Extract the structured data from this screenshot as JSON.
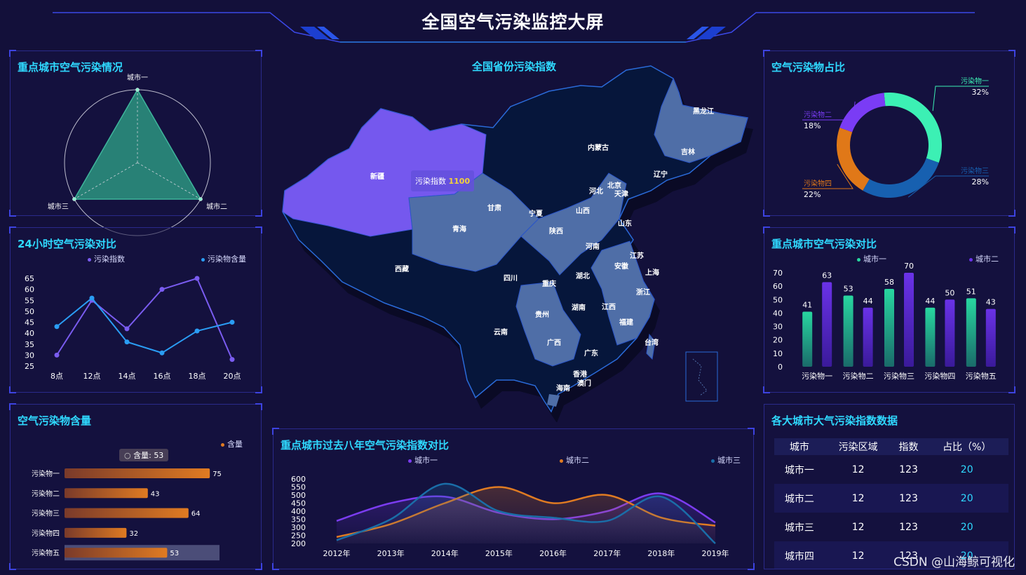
{
  "header": {
    "title": "全国空气污染监控大屏"
  },
  "colors": {
    "cyan": "#2fd9ff",
    "panel_border": "#2a2a8a",
    "bg": "#13103a"
  },
  "panels": {
    "radar": {
      "title": "重点城市空气污染情况"
    },
    "hourly": {
      "title": "24小时空气污染对比"
    },
    "content": {
      "title": "空气污染物含量"
    },
    "map": {
      "title": "全国省份污染指数"
    },
    "trend": {
      "title": "重点城市过去八年空气污染指数对比"
    },
    "share": {
      "title": "空气污染物占比"
    },
    "compare": {
      "title": "重点城市空气污染对比"
    },
    "table": {
      "title": "各大城市大气污染指数数据"
    }
  },
  "radar_chart": {
    "chart_data": {
      "type": "radar",
      "indicators": [
        "城市一",
        "城市二",
        "城市三"
      ],
      "values": [
        1,
        1,
        1
      ],
      "max": 1,
      "color": "#2a8e7c"
    }
  },
  "hourly_chart": {
    "chart_data": {
      "type": "line",
      "x": [
        "8点",
        "12点",
        "14点",
        "16点",
        "18点",
        "20点"
      ],
      "ylim": [
        25,
        65
      ],
      "yticks": [
        25,
        30,
        35,
        40,
        45,
        50,
        55,
        60,
        65
      ],
      "series": [
        {
          "name": "污染指数",
          "color": "#7a5cf0",
          "values": [
            30,
            55,
            42,
            60,
            65,
            28
          ]
        },
        {
          "name": "污染物含量",
          "color": "#2a9df4",
          "values": [
            43,
            56,
            36,
            31,
            41,
            45
          ]
        }
      ]
    }
  },
  "content_chart": {
    "chart_data": {
      "type": "bar",
      "orientation": "horizontal",
      "legend": "含量",
      "categories": [
        "污染物一",
        "污染物二",
        "污染物三",
        "污染物四",
        "污染物五"
      ],
      "values": [
        75,
        43,
        64,
        32,
        53
      ],
      "xlim": [
        0,
        80
      ],
      "highlight_index": 4,
      "tooltip": {
        "label": "含量",
        "value": "53"
      }
    }
  },
  "map_chart": {
    "chart_data": {
      "type": "map",
      "tooltip": {
        "label": "污染指数",
        "value": "1100"
      },
      "labels": [
        "新疆",
        "西藏",
        "青海",
        "甘肃",
        "宁夏",
        "内蒙古",
        "黑龙江",
        "吉林",
        "辽宁",
        "北京",
        "天津",
        "河北",
        "山西",
        "陕西",
        "山东",
        "河南",
        "江苏",
        "安徽",
        "上海",
        "浙江",
        "湖北",
        "四川",
        "重庆",
        "贵州",
        "湖南",
        "江西",
        "福建",
        "台湾",
        "云南",
        "广西",
        "广东",
        "香港",
        "澳门",
        "海南"
      ]
    }
  },
  "trend_chart": {
    "chart_data": {
      "type": "line",
      "smooth": true,
      "x": [
        "2012年",
        "2013年",
        "2014年",
        "2015年",
        "2016年",
        "2017年",
        "2018年",
        "2019年"
      ],
      "ylim": [
        200,
        600
      ],
      "yticks": [
        200,
        250,
        300,
        350,
        400,
        450,
        500,
        550,
        600
      ],
      "series": [
        {
          "name": "城市一",
          "color": "#7b3cf0",
          "values": [
            340,
            450,
            490,
            390,
            350,
            400,
            510,
            330
          ]
        },
        {
          "name": "城市二",
          "color": "#e07b22",
          "values": [
            240,
            320,
            450,
            550,
            450,
            500,
            360,
            310
          ]
        },
        {
          "name": "城市三",
          "color": "#1a6ea8",
          "values": [
            220,
            350,
            570,
            400,
            360,
            340,
            490,
            200
          ]
        }
      ]
    }
  },
  "share_chart": {
    "chart_data": {
      "type": "pie",
      "donut": true,
      "slices": [
        {
          "name": "污染物一",
          "value": 32,
          "label": "32%",
          "color": "#3cf0b4"
        },
        {
          "name": "污染物三",
          "value": 28,
          "label": "28%",
          "color": "#1760b0"
        },
        {
          "name": "污染物四",
          "value": 22,
          "label": "22%",
          "color": "#e07818"
        },
        {
          "name": "污染物二",
          "value": 18,
          "label": "18%",
          "color": "#7a3cf5"
        }
      ]
    }
  },
  "compare_chart": {
    "chart_data": {
      "type": "bar",
      "categories": [
        "污染物一",
        "污染物二",
        "污染物三",
        "污染物四",
        "污染物五"
      ],
      "ylim": [
        0,
        70
      ],
      "yticks": [
        0,
        10,
        20,
        30,
        40,
        50,
        60,
        70
      ],
      "series": [
        {
          "name": "城市一",
          "color": "#28d6a0",
          "values": [
            41,
            53,
            58,
            44,
            51
          ]
        },
        {
          "name": "城市二",
          "color": "#6a32e8",
          "values": [
            63,
            44,
            70,
            50,
            43
          ]
        }
      ]
    }
  },
  "city_table": {
    "columns": [
      "城市",
      "污染区域",
      "指数",
      "占比（%）"
    ],
    "rows": [
      [
        "城市一",
        "12",
        "123",
        "20"
      ],
      [
        "城市二",
        "12",
        "123",
        "20"
      ],
      [
        "城市三",
        "12",
        "123",
        "20"
      ],
      [
        "城市四",
        "12",
        "123",
        "20"
      ]
    ]
  },
  "watermark": "CSDN @山海鲸可视化"
}
